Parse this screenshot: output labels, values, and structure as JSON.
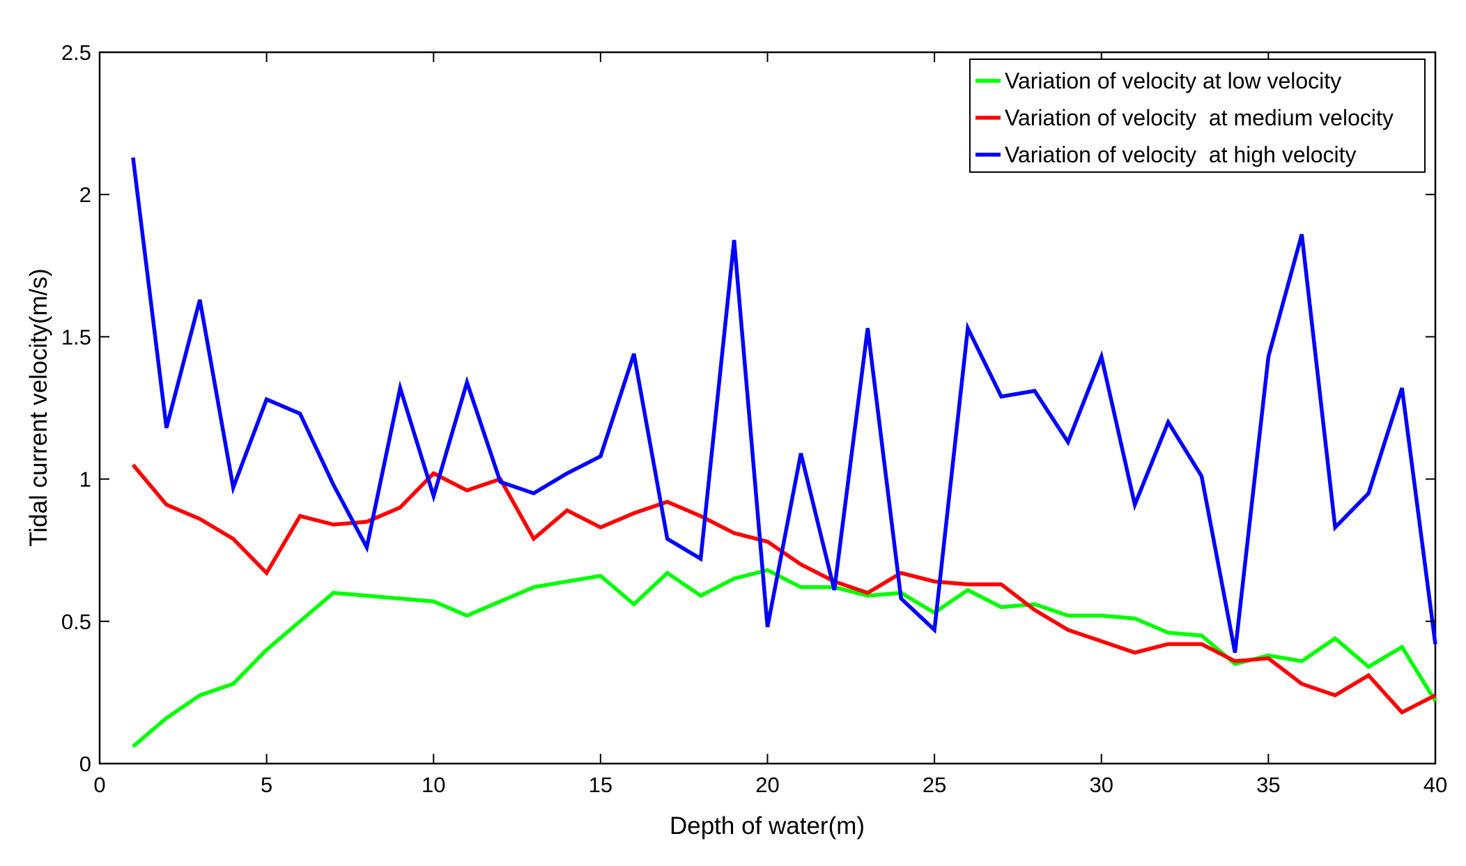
{
  "chart_data": {
    "type": "line",
    "xlabel": "Depth of water(m)",
    "ylabel": "Tidal current velocity(m/s)",
    "xlim": [
      0,
      40
    ],
    "ylim": [
      0,
      2.5
    ],
    "xticks": [
      0,
      5,
      10,
      15,
      20,
      25,
      30,
      35,
      40
    ],
    "yticks": [
      0,
      0.5,
      1,
      1.5,
      2,
      2.5
    ],
    "xtick_labels": [
      "0",
      "5",
      "10",
      "15",
      "20",
      "25",
      "30",
      "35",
      "40"
    ],
    "ytick_labels": [
      "0",
      "0.5",
      "1",
      "1.5",
      "2",
      "2.5"
    ],
    "grid": false,
    "legend_position": "top-right",
    "x": [
      1,
      2,
      3,
      4,
      5,
      6,
      7,
      8,
      9,
      10,
      11,
      12,
      13,
      14,
      15,
      16,
      17,
      18,
      19,
      20,
      21,
      22,
      23,
      24,
      25,
      26,
      27,
      28,
      29,
      30,
      31,
      32,
      33,
      34,
      35,
      36,
      37,
      38,
      39,
      40
    ],
    "series": [
      {
        "name": "Variation of velocity at low velocity",
        "color": "#00ff00",
        "values": [
          0.06,
          0.16,
          0.24,
          0.28,
          0.4,
          0.5,
          0.6,
          0.59,
          0.58,
          0.57,
          0.52,
          0.57,
          0.62,
          0.64,
          0.66,
          0.56,
          0.67,
          0.59,
          0.65,
          0.68,
          0.62,
          0.62,
          0.59,
          0.6,
          0.53,
          0.61,
          0.55,
          0.56,
          0.52,
          0.52,
          0.51,
          0.46,
          0.45,
          0.35,
          0.38,
          0.36,
          0.44,
          0.34,
          0.41,
          0.22
        ]
      },
      {
        "name": "Variation of velocity  at medium velocity",
        "color": "#ff0000",
        "values": [
          1.05,
          0.91,
          0.86,
          0.79,
          0.67,
          0.87,
          0.84,
          0.85,
          0.9,
          1.02,
          0.96,
          1.0,
          0.79,
          0.89,
          0.83,
          0.88,
          0.92,
          0.87,
          0.81,
          0.78,
          0.7,
          0.64,
          0.6,
          0.67,
          0.64,
          0.63,
          0.63,
          0.54,
          0.47,
          0.43,
          0.39,
          0.42,
          0.42,
          0.36,
          0.37,
          0.28,
          0.24,
          0.31,
          0.18,
          0.24
        ]
      },
      {
        "name": "Variation of velocity  at high velocity",
        "color": "#0000ff",
        "values": [
          2.13,
          1.18,
          1.63,
          0.97,
          1.28,
          1.23,
          0.98,
          0.76,
          1.32,
          0.94,
          1.34,
          0.99,
          0.95,
          1.02,
          1.08,
          1.44,
          0.79,
          0.72,
          1.84,
          0.48,
          1.09,
          0.61,
          1.53,
          0.58,
          0.47,
          1.53,
          1.29,
          1.31,
          1.13,
          1.43,
          0.91,
          1.2,
          1.01,
          0.39,
          1.43,
          1.86,
          0.83,
          0.95,
          1.32,
          0.42
        ]
      }
    ]
  }
}
